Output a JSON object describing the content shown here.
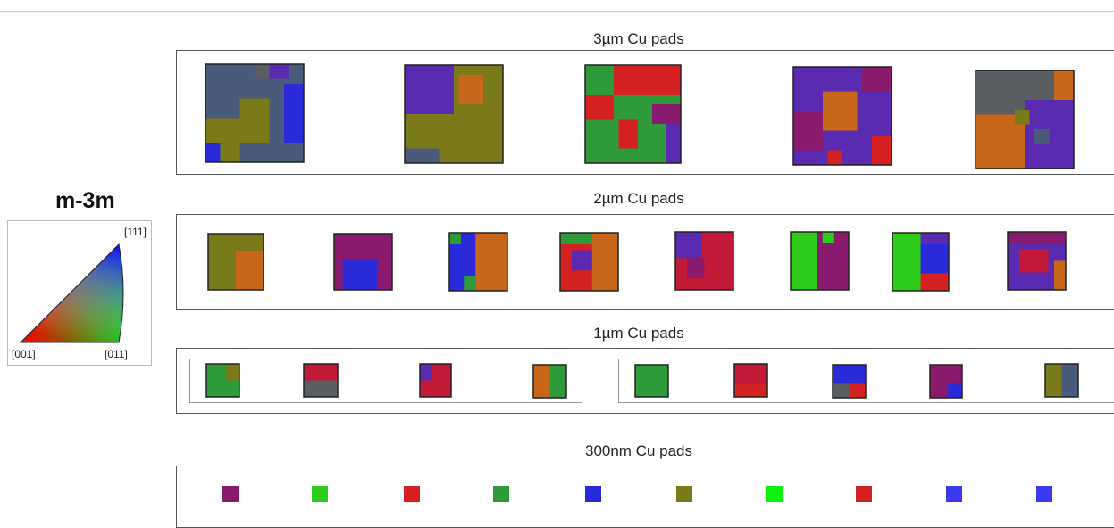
{
  "legend": {
    "title": "m-3m",
    "labels": {
      "top": "[111]",
      "bottom_left": "[001]",
      "bottom_right": "[011]"
    }
  },
  "sections": [
    {
      "title": "3µm Cu pads"
    },
    {
      "title": "2µm Cu pads"
    },
    {
      "title": "1µm Cu pads"
    },
    {
      "title": "300nm Cu pads"
    }
  ],
  "colors": {
    "red": "#d42020",
    "green": "#2e9a3a",
    "blue": "#2a2ad8",
    "purple": "#8a1a6e",
    "olive": "#7a7a1a",
    "slate": "#4a5a7a",
    "orange": "#c8661a",
    "grey": "#5a5e62",
    "bright_green": "#2ecc1a",
    "lime": "#10f010",
    "crimson": "#c41a3a",
    "violet": "#5a2ab0"
  }
}
